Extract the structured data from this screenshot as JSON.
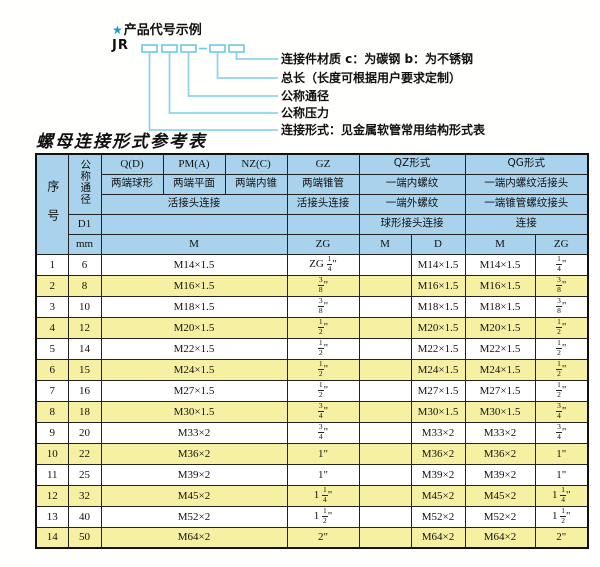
{
  "diagram": {
    "star": "★",
    "title": "产品代号示例",
    "prefix": "JR",
    "labels": [
      "连接件材质  c：为碳钢  b：为不锈钢",
      "总长（长度可根据用户要求定制）",
      "公称通径",
      "公称压力",
      "连接形式：见金属软管常用结构形式表"
    ]
  },
  "table_title": "螺母连接形式参考表",
  "table": {
    "header": {
      "seq": "序号",
      "dn": "公称通径",
      "d1": "D1",
      "mm": "mm",
      "q": "Q(D)",
      "q_desc": "两端球形",
      "pm": "PM(A)",
      "pm_desc": "两端平面",
      "nz": "NZ(C)",
      "nz_desc": "两端内锥",
      "gz": "GZ",
      "gz_desc": "两端锥管",
      "gz_row3": "活接头连接",
      "union_span": "活接头连接",
      "qz": "QZ形式",
      "qz_row2": "一端内螺纹",
      "qz_row3": "一端外螺纹",
      "qz_row4": "球形接头连接",
      "qg": "QG形式",
      "qg_row2": "一端内螺纹活接头",
      "qg_row3": "一端锥管螺纹接头",
      "qg_row4": "连接",
      "m": "M",
      "zg": "ZG",
      "qz_m": "M",
      "qz_d": "D",
      "qg_m": "M",
      "qg_zg": "ZG"
    },
    "rows": [
      {
        "no": "1",
        "dn": "6",
        "m": "M14×1.5",
        "gz": "ZG 1/4\"",
        "qz_m": "",
        "qz_d": "M14×1.5",
        "qg_m": "M14×1.5",
        "qg_zg": "1/4\""
      },
      {
        "no": "2",
        "dn": "8",
        "m": "M16×1.5",
        "gz": "3/8\"",
        "qz_m": "",
        "qz_d": "M16×1.5",
        "qg_m": "M16×1.5",
        "qg_zg": "3/8\""
      },
      {
        "no": "3",
        "dn": "10",
        "m": "M18×1.5",
        "gz": "3/8\"",
        "qz_m": "",
        "qz_d": "M18×1.5",
        "qg_m": "M18×1.5",
        "qg_zg": "3/8\""
      },
      {
        "no": "4",
        "dn": "12",
        "m": "M20×1.5",
        "gz": "1/2\"",
        "qz_m": "",
        "qz_d": "M20×1.5",
        "qg_m": "M20×1.5",
        "qg_zg": "1/2\""
      },
      {
        "no": "5",
        "dn": "14",
        "m": "M22×1.5",
        "gz": "1/2\"",
        "qz_m": "",
        "qz_d": "M22×1.5",
        "qg_m": "M22×1.5",
        "qg_zg": "1/2\""
      },
      {
        "no": "6",
        "dn": "15",
        "m": "M24×1.5",
        "gz": "1/2\"",
        "qz_m": "",
        "qz_d": "M24×1.5",
        "qg_m": "M24×1.5",
        "qg_zg": "1/2\""
      },
      {
        "no": "7",
        "dn": "16",
        "m": "M27×1.5",
        "gz": "1/2\"",
        "qz_m": "",
        "qz_d": "M27×1.5",
        "qg_m": "M27×1.5",
        "qg_zg": "1/2\""
      },
      {
        "no": "8",
        "dn": "18",
        "m": "M30×1.5",
        "gz": "3/4\"",
        "qz_m": "",
        "qz_d": "M30×1.5",
        "qg_m": "M30×1.5",
        "qg_zg": "3/4\""
      },
      {
        "no": "9",
        "dn": "20",
        "m": "M33×2",
        "gz": "3/4\"",
        "qz_m": "",
        "qz_d": "M33×2",
        "qg_m": "M33×2",
        "qg_zg": "3/4\""
      },
      {
        "no": "10",
        "dn": "22",
        "m": "M36×2",
        "gz": "1\"",
        "qz_m": "",
        "qz_d": "M36×2",
        "qg_m": "M36×2",
        "qg_zg": "1\""
      },
      {
        "no": "11",
        "dn": "25",
        "m": "M39×2",
        "gz": "1\"",
        "qz_m": "",
        "qz_d": "M39×2",
        "qg_m": "M39×2",
        "qg_zg": "1\""
      },
      {
        "no": "12",
        "dn": "32",
        "m": "M45×2",
        "gz": "1 1/4\"",
        "qz_m": "",
        "qz_d": "M45×2",
        "qg_m": "M45×2",
        "qg_zg": "1 1/4\""
      },
      {
        "no": "13",
        "dn": "40",
        "m": "M52×2",
        "gz": "1 1/2\"",
        "qz_m": "",
        "qz_d": "M52×2",
        "qg_m": "M52×2",
        "qg_zg": "1 1/2\""
      },
      {
        "no": "14",
        "dn": "50",
        "m": "M64×2",
        "gz": "2\"",
        "qz_m": "",
        "qz_d": "M64×2",
        "qg_m": "M64×2",
        "qg_zg": "2\""
      }
    ]
  },
  "colors": {
    "header_bg": "#a9d3ec",
    "row_alt_bg": "#f6f1a2",
    "row_bg": "#ffffff",
    "border": "#1a1a1a",
    "diagram_line": "#8fd6ea",
    "star_blue": "#1b9cd8",
    "text": "#111111"
  }
}
